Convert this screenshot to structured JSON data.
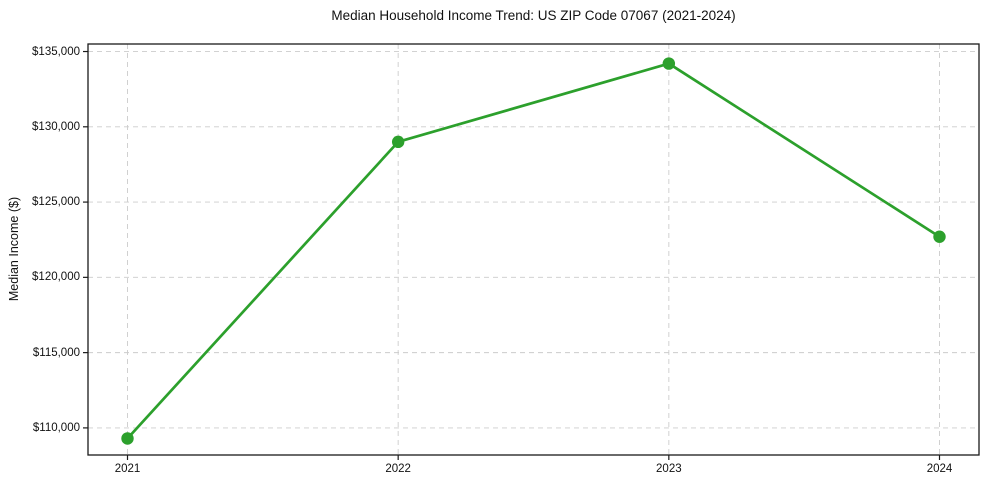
{
  "chart_data": {
    "type": "line",
    "title": "Median Household Income Trend: US ZIP Code 07067 (2021-2024)",
    "xlabel": "",
    "ylabel": "Median Income ($)",
    "categories": [
      "2021",
      "2022",
      "2023",
      "2024"
    ],
    "series": [
      {
        "name": "Median Household Income",
        "values": [
          109300,
          129000,
          134200,
          122700
        ]
      }
    ],
    "y_ticks": [
      110000,
      115000,
      120000,
      125000,
      130000,
      135000
    ],
    "y_tick_labels": [
      "$110,000",
      "$115,000",
      "$120,000",
      "$125,000",
      "$130,000",
      "$135,000"
    ],
    "ylim": [
      108200,
      135500
    ],
    "grid": "both-dashed",
    "legend": "none",
    "line_color": "#2ca02c",
    "marker": "circle",
    "grid_color": "#cccccc",
    "axis_color": "#1a1a1a",
    "background_color": "#ffffff"
  }
}
